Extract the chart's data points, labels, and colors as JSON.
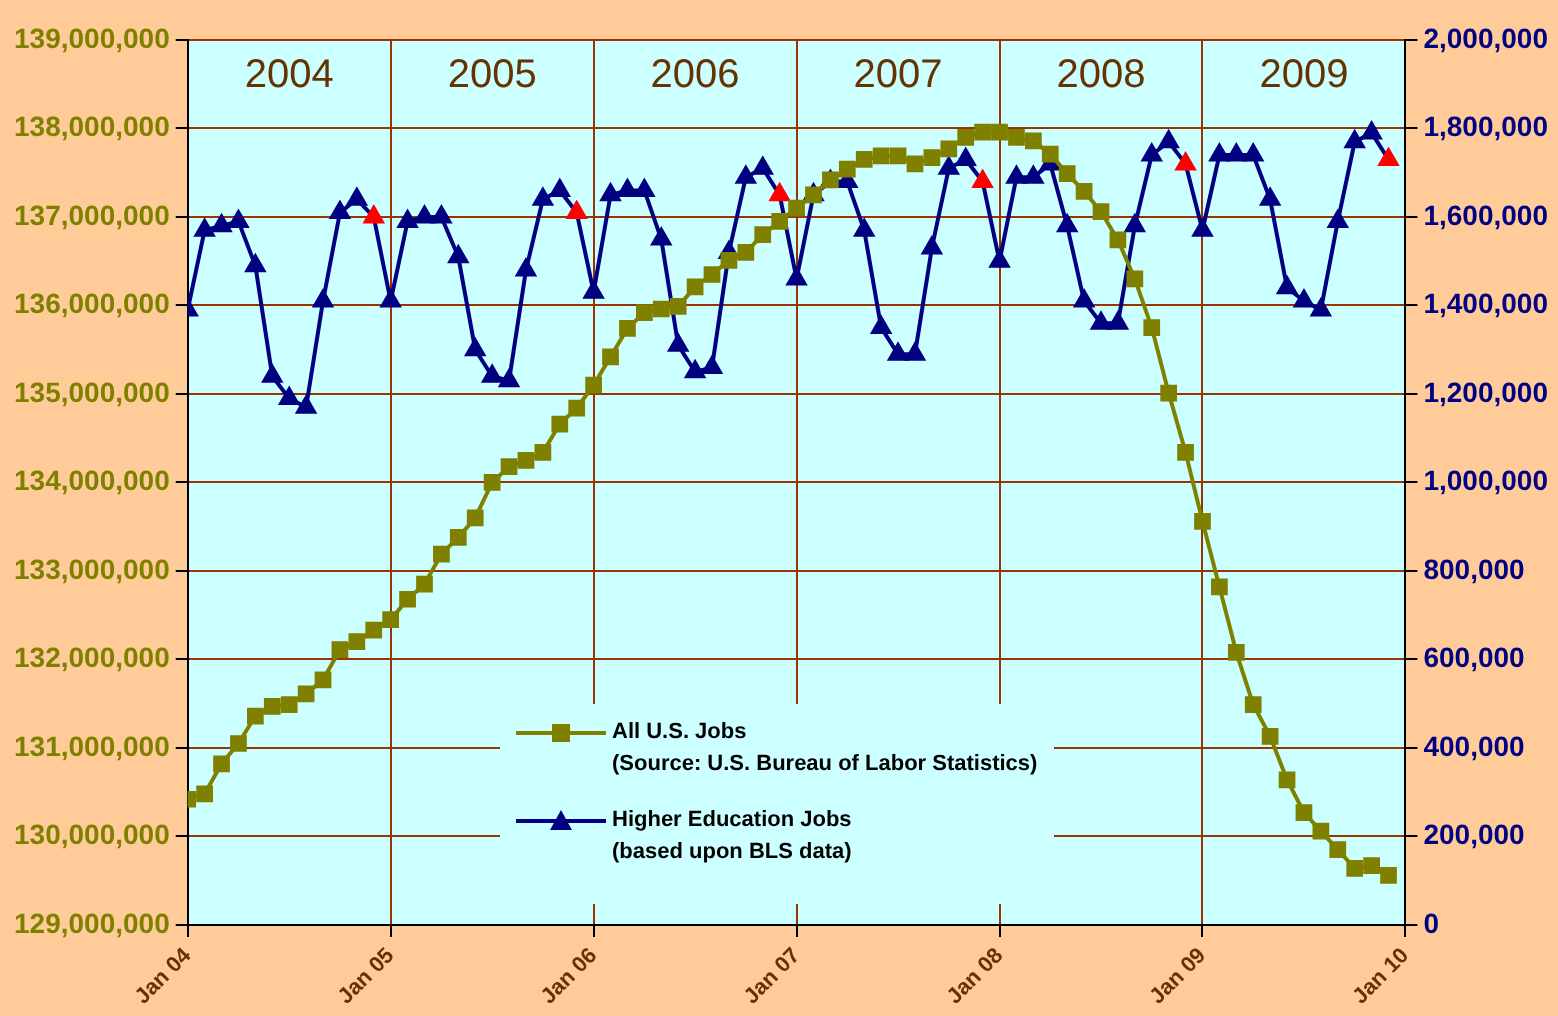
{
  "chart_data": {
    "type": "line",
    "x": [
      "2004-01",
      "2004-02",
      "2004-03",
      "2004-04",
      "2004-05",
      "2004-06",
      "2004-07",
      "2004-08",
      "2004-09",
      "2004-10",
      "2004-11",
      "2004-12",
      "2005-01",
      "2005-02",
      "2005-03",
      "2005-04",
      "2005-05",
      "2005-06",
      "2005-07",
      "2005-08",
      "2005-09",
      "2005-10",
      "2005-11",
      "2005-12",
      "2006-01",
      "2006-02",
      "2006-03",
      "2006-04",
      "2006-05",
      "2006-06",
      "2006-07",
      "2006-08",
      "2006-09",
      "2006-10",
      "2006-11",
      "2006-12",
      "2007-01",
      "2007-02",
      "2007-03",
      "2007-04",
      "2007-05",
      "2007-06",
      "2007-07",
      "2007-08",
      "2007-09",
      "2007-10",
      "2007-11",
      "2007-12",
      "2008-01",
      "2008-02",
      "2008-03",
      "2008-04",
      "2008-05",
      "2008-06",
      "2008-07",
      "2008-08",
      "2008-09",
      "2008-10",
      "2008-11",
      "2008-12",
      "2009-01",
      "2009-02",
      "2009-03",
      "2009-04",
      "2009-05",
      "2009-06",
      "2009-07",
      "2009-08",
      "2009-09",
      "2009-10",
      "2009-11",
      "2009-12"
    ],
    "series": [
      {
        "name": "All U.S. Jobs",
        "color": "#808000",
        "marker": "square",
        "values": [
          130420000,
          130480000,
          130820000,
          131050000,
          131360000,
          131470000,
          131490000,
          131610000,
          131770000,
          132110000,
          132200000,
          132330000,
          132450000,
          132680000,
          132850000,
          133190000,
          133380000,
          133600000,
          134000000,
          134180000,
          134250000,
          134340000,
          134660000,
          134840000,
          135100000,
          135420000,
          135740000,
          135920000,
          135960000,
          135990000,
          136210000,
          136350000,
          136510000,
          136600000,
          136800000,
          136950000,
          137100000,
          137250000,
          137420000,
          137540000,
          137650000,
          137690000,
          137690000,
          137600000,
          137670000,
          137770000,
          137900000,
          137960000,
          137960000,
          137900000,
          137860000,
          137710000,
          137490000,
          137290000,
          137060000,
          136740000,
          136300000,
          135750000,
          135010000,
          134340000,
          133560000,
          132820000,
          132080000,
          131490000,
          131130000,
          130640000,
          130270000,
          130060000,
          129850000,
          129640000,
          129670000,
          129560000
        ]
      },
      {
        "name": "Higher Education Jobs",
        "color": "#000080",
        "marker": "triangle",
        "axis": "y2",
        "values": [
          1390000,
          1570000,
          1580000,
          1590000,
          1490000,
          1240000,
          1190000,
          1170000,
          1410000,
          1610000,
          1640000,
          1600000,
          1410000,
          1590000,
          1600000,
          1600000,
          1510000,
          1300000,
          1240000,
          1230000,
          1480000,
          1640000,
          1660000,
          1610000,
          1430000,
          1650000,
          1660000,
          1660000,
          1550000,
          1310000,
          1250000,
          1260000,
          1520000,
          1690000,
          1710000,
          1650000,
          1460000,
          1650000,
          1680000,
          1680000,
          1570000,
          1350000,
          1290000,
          1290000,
          1530000,
          1710000,
          1730000,
          1680000,
          1500000,
          1690000,
          1690000,
          1720000,
          1580000,
          1410000,
          1360000,
          1360000,
          1580000,
          1740000,
          1770000,
          1720000,
          1570000,
          1740000,
          1740000,
          1740000,
          1640000,
          1440000,
          1410000,
          1390000,
          1590000,
          1770000,
          1790000,
          1730000
        ],
        "colors": [
          "#000080",
          "#000080",
          "#000080",
          "#000080",
          "#000080",
          "#000080",
          "#000080",
          "#000080",
          "#000080",
          "#000080",
          "#000080",
          "#ff0000",
          "#000080",
          "#000080",
          "#000080",
          "#000080",
          "#000080",
          "#000080",
          "#000080",
          "#000080",
          "#000080",
          "#000080",
          "#000080",
          "#ff0000",
          "#000080",
          "#000080",
          "#000080",
          "#000080",
          "#000080",
          "#000080",
          "#000080",
          "#000080",
          "#000080",
          "#000080",
          "#000080",
          "#ff0000",
          "#000080",
          "#000080",
          "#000080",
          "#000080",
          "#000080",
          "#000080",
          "#000080",
          "#000080",
          "#000080",
          "#000080",
          "#000080",
          "#ff0000",
          "#000080",
          "#000080",
          "#000080",
          "#000080",
          "#000080",
          "#000080",
          "#000080",
          "#000080",
          "#000080",
          "#000080",
          "#000080",
          "#ff0000",
          "#000080",
          "#000080",
          "#000080",
          "#000080",
          "#000080",
          "#000080",
          "#000080",
          "#000080",
          "#000080",
          "#000080",
          "#000080",
          "#ff0000"
        ]
      }
    ],
    "annotations": [
      "(Source: U.S. Bureau of Labor Statistics)",
      "(based upon BLS data)"
    ],
    "xlim": [
      "2004-01",
      "2010-01"
    ],
    "xticks": [
      {
        "value": "2004-01",
        "label": "Jan 04"
      },
      {
        "value": "2005-01",
        "label": "Jan 05"
      },
      {
        "value": "2006-01",
        "label": "Jan 06"
      },
      {
        "value": "2007-01",
        "label": "Jan 07"
      },
      {
        "value": "2008-01",
        "label": "Jan 08"
      },
      {
        "value": "2009-01",
        "label": "Jan 09"
      },
      {
        "value": "2010-01",
        "label": "Jan 10"
      }
    ],
    "x2lim": [
      "2004-01",
      "2010-01"
    ],
    "x2ticks": [
      {
        "value": "2004-07",
        "label": "2004"
      },
      {
        "value": "2005-07",
        "label": "2005"
      },
      {
        "value": "2006-07",
        "label": "2006"
      },
      {
        "value": "2007-07",
        "label": "2007"
      },
      {
        "value": "2008-07",
        "label": "2008"
      },
      {
        "value": "2009-07",
        "label": "2009"
      }
    ],
    "ylim": [
      129000000,
      139000000
    ],
    "yticks": [
      {
        "value": 129000000,
        "label": "129,000,000"
      },
      {
        "value": 130000000,
        "label": "130,000,000"
      },
      {
        "value": 131000000,
        "label": "131,000,000"
      },
      {
        "value": 132000000,
        "label": "132,000,000"
      },
      {
        "value": 133000000,
        "label": "133,000,000"
      },
      {
        "value": 134000000,
        "label": "134,000,000"
      },
      {
        "value": 135000000,
        "label": "135,000,000"
      },
      {
        "value": 136000000,
        "label": "136,000,000"
      },
      {
        "value": 137000000,
        "label": "137,000,000"
      },
      {
        "value": 138000000,
        "label": "138,000,000"
      },
      {
        "value": 139000000,
        "label": "139,000,000"
      }
    ],
    "y2lim": [
      0,
      2000000
    ],
    "y2ticks": [
      0,
      {
        "value": 200000,
        "label": "200,000"
      },
      {
        "value": 400000,
        "label": "400,000"
      },
      {
        "value": 600000,
        "label": "600,000"
      },
      {
        "value": 800000,
        "label": "800,000"
      },
      {
        "value": 1000000,
        "label": "1,000,000"
      },
      {
        "value": 1200000,
        "label": "1,200,000"
      },
      {
        "value": 1400000,
        "label": "1,400,000"
      },
      {
        "value": 1600000,
        "label": "1,600,000"
      },
      {
        "value": 1800000,
        "label": "1,800,000"
      },
      {
        "value": 2000000,
        "label": "2,000,000"
      }
    ],
    "grid": true,
    "legend": "bottom",
    "line_style": "solid"
  }
}
